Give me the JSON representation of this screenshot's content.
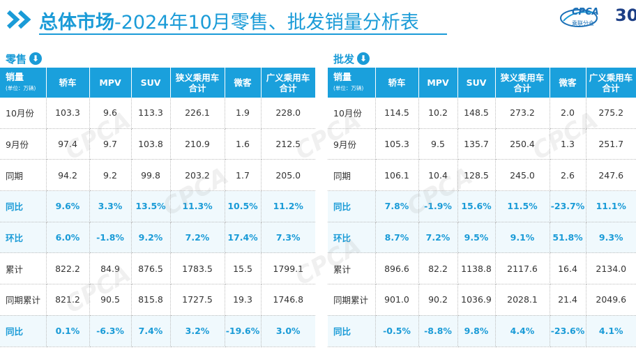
{
  "title": {
    "bold": "总体市场",
    "rest": "-2024年10月零售、批发销量分析表"
  },
  "logo": {
    "text": "CPCA",
    "sub": "乘联分会",
    "badge": "30"
  },
  "retail": {
    "label": "零售",
    "corner": {
      "main": "销量",
      "unit": "(单位：万辆)"
    },
    "columns": [
      "轿车",
      "MPV",
      "SUV",
      "狭义乘用车\n合计",
      "微客",
      "广义乘用车\n合计"
    ],
    "rows": [
      {
        "label": "10月份",
        "pct": false,
        "values": [
          "103.3",
          "9.6",
          "113.3",
          "226.1",
          "1.9",
          "228.0"
        ]
      },
      {
        "label": "9月份",
        "pct": false,
        "values": [
          "97.4",
          "9.7",
          "103.8",
          "210.9",
          "1.6",
          "212.5"
        ]
      },
      {
        "label": "同期",
        "pct": false,
        "values": [
          "94.2",
          "9.2",
          "99.8",
          "203.2",
          "1.7",
          "205.0"
        ]
      },
      {
        "label": "同比",
        "pct": true,
        "values": [
          "9.6%",
          "3.3%",
          "13.5%",
          "11.3%",
          "10.5%",
          "11.2%"
        ]
      },
      {
        "label": "环比",
        "pct": true,
        "values": [
          "6.0%",
          "-1.8%",
          "9.2%",
          "7.2%",
          "17.4%",
          "7.3%"
        ]
      },
      {
        "label": "累计",
        "pct": false,
        "values": [
          "822.2",
          "84.9",
          "876.5",
          "1783.5",
          "15.5",
          "1799.1"
        ]
      },
      {
        "label": "同期累计",
        "pct": false,
        "values": [
          "821.2",
          "90.5",
          "815.8",
          "1727.5",
          "19.3",
          "1746.8"
        ]
      },
      {
        "label": "同比",
        "pct": true,
        "values": [
          "0.1%",
          "-6.3%",
          "7.4%",
          "3.2%",
          "-19.6%",
          "3.0%"
        ]
      }
    ]
  },
  "wholesale": {
    "label": "批发",
    "corner": {
      "main": "销量",
      "unit": "(单位：万辆)"
    },
    "columns": [
      "轿车",
      "MPV",
      "SUV",
      "狭义乘用车\n合计",
      "微客",
      "广义乘用车\n合计"
    ],
    "rows": [
      {
        "label": "10月份",
        "pct": false,
        "values": [
          "114.5",
          "10.2",
          "148.5",
          "273.2",
          "2.0",
          "275.2"
        ]
      },
      {
        "label": "9月份",
        "pct": false,
        "values": [
          "105.3",
          "9.5",
          "135.7",
          "250.4",
          "1.3",
          "251.7"
        ]
      },
      {
        "label": "同期",
        "pct": false,
        "values": [
          "106.1",
          "10.4",
          "128.5",
          "245.0",
          "2.6",
          "247.6"
        ]
      },
      {
        "label": "同比",
        "pct": true,
        "values": [
          "7.8%",
          "-1.9%",
          "15.6%",
          "11.5%",
          "-23.7%",
          "11.1%"
        ]
      },
      {
        "label": "环比",
        "pct": true,
        "values": [
          "8.7%",
          "7.2%",
          "9.5%",
          "9.1%",
          "51.8%",
          "9.3%"
        ]
      },
      {
        "label": "累计",
        "pct": false,
        "values": [
          "896.6",
          "82.2",
          "1138.8",
          "2117.6",
          "16.4",
          "2134.0"
        ]
      },
      {
        "label": "同期累计",
        "pct": false,
        "values": [
          "901.0",
          "90.2",
          "1036.9",
          "2028.1",
          "21.4",
          "2049.6"
        ]
      },
      {
        "label": "同比",
        "pct": true,
        "values": [
          "-0.5%",
          "-8.8%",
          "9.8%",
          "4.4%",
          "-23.6%",
          "4.1%"
        ]
      }
    ]
  },
  "watermark": "CPCA",
  "colors": {
    "accent": "#1aa0dc",
    "title": "#1a9bd7"
  }
}
